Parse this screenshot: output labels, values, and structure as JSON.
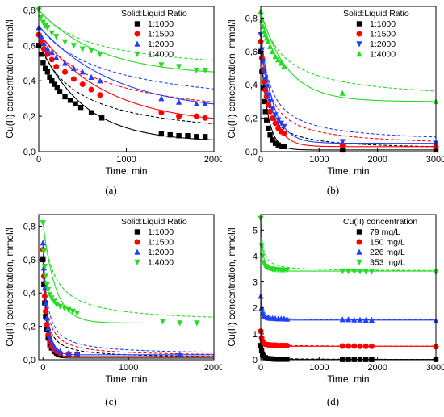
{
  "chart_data": [
    {
      "panel": "a",
      "caption": "(a)",
      "type": "scatter",
      "xlabel": "Time, min",
      "ylabel": "Cu(II) concentration, mmol/l",
      "xlim": [
        0,
        2000
      ],
      "ylim": [
        0,
        0.82
      ],
      "xticks": [
        0,
        1000,
        2000
      ],
      "xtick_labels": [
        "0",
        "1000",
        "2000"
      ],
      "yticks": [
        0,
        0.2,
        0.4,
        0.6,
        0.8
      ],
      "ytick_labels": [
        "0,0",
        "0,2",
        "0,4",
        "0,6",
        "0,8"
      ],
      "legend_title": "Solid:Liquid Ratio",
      "legend_position": "top-right",
      "series": [
        {
          "name": "1:1000",
          "color": "#000000",
          "marker": "square",
          "x": [
            0,
            25,
            50,
            75,
            100,
            125,
            150,
            180,
            210,
            240,
            300,
            360,
            420,
            480,
            600,
            720,
            1400,
            1500,
            1600,
            1700,
            1800,
            1900
          ],
          "y": [
            0.6,
            0.55,
            0.5,
            0.47,
            0.45,
            0.42,
            0.4,
            0.38,
            0.36,
            0.34,
            0.31,
            0.29,
            0.27,
            0.25,
            0.22,
            0.19,
            0.1,
            0.095,
            0.09,
            0.09,
            0.085,
            0.085
          ],
          "fit": {
            "c0": 0.615,
            "cinf": 0.055,
            "k": 0.00195
          }
        },
        {
          "name": "1:1500",
          "color": "#ff0000",
          "marker": "circle",
          "x": [
            0,
            30,
            60,
            100,
            150,
            200,
            300,
            400,
            500,
            600,
            700,
            1400,
            1600,
            1800,
            1900
          ],
          "y": [
            0.66,
            0.62,
            0.58,
            0.55,
            0.52,
            0.48,
            0.45,
            0.41,
            0.38,
            0.35,
            0.32,
            0.22,
            0.2,
            0.2,
            0.19
          ],
          "fit": {
            "c0": 0.675,
            "cinf": 0.15,
            "k": 0.00132
          }
        },
        {
          "name": "1:2000",
          "color": "#1f3fff",
          "marker": "triangle-up",
          "x": [
            0,
            30,
            60,
            100,
            150,
            200,
            300,
            400,
            500,
            600,
            700,
            1400,
            1600,
            1800,
            1900
          ],
          "y": [
            0.7,
            0.65,
            0.61,
            0.58,
            0.56,
            0.53,
            0.5,
            0.47,
            0.45,
            0.42,
            0.4,
            0.3,
            0.28,
            0.27,
            0.27
          ],
          "fit": {
            "c0": 0.71,
            "cinf": 0.22,
            "k": 0.00115
          }
        },
        {
          "name": "1:4000",
          "color": "#22dd22",
          "marker": "triangle-down",
          "x": [
            0,
            25,
            50,
            75,
            100,
            150,
            200,
            300,
            400,
            500,
            600,
            700,
            1400,
            1600,
            1800,
            1900
          ],
          "y": [
            0.8,
            0.76,
            0.73,
            0.71,
            0.7,
            0.67,
            0.65,
            0.62,
            0.6,
            0.58,
            0.57,
            0.55,
            0.49,
            0.48,
            0.46,
            0.46
          ],
          "fit": {
            "c0": 0.8,
            "cinf": 0.43,
            "k": 0.00145
          }
        }
      ]
    },
    {
      "panel": "b",
      "caption": "(b)",
      "type": "scatter",
      "xlabel": "Time, min",
      "ylabel": "Cu(II) concentration, mmol/l",
      "xlim": [
        0,
        3000
      ],
      "ylim": [
        0,
        0.87
      ],
      "xticks": [
        0,
        1000,
        2000,
        3000
      ],
      "xtick_labels": [
        "0",
        "1000",
        "2000",
        "3000"
      ],
      "yticks": [
        0,
        0.2,
        0.4,
        0.6,
        0.8
      ],
      "ytick_labels": [
        "0,0",
        "0,2",
        "0,4",
        "0,6",
        "0,8"
      ],
      "legend_title": "Solid:Liquid Ratio",
      "legend_position": "top-right",
      "series": [
        {
          "name": "1:1000",
          "color": "#000000",
          "marker": "square",
          "x": [
            0,
            20,
            40,
            60,
            80,
            100,
            130,
            160,
            200,
            250,
            300,
            350,
            400,
            1400,
            3000
          ],
          "y": [
            0.6,
            0.48,
            0.38,
            0.3,
            0.24,
            0.19,
            0.14,
            0.1,
            0.07,
            0.05,
            0.04,
            0.03,
            0.03,
            0.01,
            0.01
          ],
          "fit": {
            "c0": 0.62,
            "cinf": 0.01,
            "k": 0.0085
          }
        },
        {
          "name": "1:1500",
          "color": "#ff0000",
          "marker": "circle",
          "x": [
            0,
            20,
            40,
            60,
            80,
            100,
            130,
            160,
            200,
            250,
            300,
            350,
            400,
            1400,
            3000
          ],
          "y": [
            0.66,
            0.56,
            0.49,
            0.42,
            0.37,
            0.33,
            0.28,
            0.24,
            0.2,
            0.17,
            0.14,
            0.12,
            0.11,
            0.04,
            0.03
          ],
          "fit": {
            "c0": 0.68,
            "cinf": 0.03,
            "k": 0.0055
          }
        },
        {
          "name": "1:2000",
          "color": "#1f3fff",
          "marker": "triangle-down",
          "x": [
            0,
            20,
            40,
            60,
            80,
            100,
            130,
            160,
            200,
            250,
            300,
            350,
            400,
            1400,
            3000
          ],
          "y": [
            0.7,
            0.61,
            0.54,
            0.48,
            0.43,
            0.39,
            0.34,
            0.3,
            0.26,
            0.22,
            0.19,
            0.17,
            0.15,
            0.06,
            0.05
          ],
          "fit": {
            "c0": 0.71,
            "cinf": 0.05,
            "k": 0.0048
          }
        },
        {
          "name": "1:4000",
          "color": "#22dd22",
          "marker": "triangle-up",
          "x": [
            0,
            20,
            40,
            60,
            80,
            100,
            130,
            160,
            200,
            250,
            300,
            350,
            400,
            1400,
            3000
          ],
          "y": [
            0.84,
            0.79,
            0.75,
            0.72,
            0.7,
            0.68,
            0.66,
            0.63,
            0.6,
            0.57,
            0.55,
            0.53,
            0.51,
            0.35,
            0.3
          ],
          "fit": {
            "c0": 0.84,
            "cinf": 0.3,
            "k": 0.0022
          }
        }
      ]
    },
    {
      "panel": "c",
      "caption": "(c)",
      "type": "scatter",
      "xlabel": "Time, min",
      "ylabel": "Cu(II) concentration, mmol/l",
      "xlim": [
        -50,
        2000
      ],
      "ylim": [
        0,
        0.87
      ],
      "xticks": [
        0,
        1000,
        2000
      ],
      "xtick_labels": [
        "0",
        "1000",
        "2000"
      ],
      "yticks": [
        0,
        0.2,
        0.4,
        0.6,
        0.8
      ],
      "ytick_labels": [
        "0,0",
        "0,2",
        "0,4",
        "0,6",
        "0,8"
      ],
      "legend_title": "Solid:Liquid Ratio",
      "legend_position": "top-right",
      "series": [
        {
          "name": "1:1000",
          "color": "#000000",
          "marker": "square",
          "x": [
            0,
            10,
            20,
            30,
            45,
            60,
            80,
            100,
            130,
            160,
            200,
            300,
            400
          ],
          "y": [
            0.6,
            0.45,
            0.34,
            0.26,
            0.18,
            0.13,
            0.09,
            0.07,
            0.05,
            0.04,
            0.03,
            0.03,
            0.03
          ],
          "fit": {
            "c0": 0.6,
            "cinf": 0.01,
            "k": 0.025
          }
        },
        {
          "name": "1:1500",
          "color": "#ff0000",
          "marker": "circle",
          "x": [
            0,
            10,
            20,
            30,
            45,
            60,
            80,
            100,
            130,
            160,
            200,
            300,
            400
          ],
          "y": [
            0.66,
            0.5,
            0.38,
            0.29,
            0.21,
            0.15,
            0.11,
            0.08,
            0.06,
            0.05,
            0.04,
            0.035,
            0.03
          ],
          "fit": {
            "c0": 0.66,
            "cinf": 0.02,
            "k": 0.022
          }
        },
        {
          "name": "1:2000",
          "color": "#1f3fff",
          "marker": "triangle-up",
          "x": [
            0,
            10,
            20,
            30,
            45,
            60,
            80,
            100,
            130,
            160,
            200,
            300,
            400,
            1600
          ],
          "y": [
            0.7,
            0.55,
            0.43,
            0.34,
            0.25,
            0.19,
            0.14,
            0.11,
            0.08,
            0.06,
            0.05,
            0.04,
            0.04,
            0.03
          ],
          "fit": {
            "c0": 0.7,
            "cinf": 0.03,
            "k": 0.019
          }
        },
        {
          "name": "1:4000",
          "color": "#22dd22",
          "marker": "triangle-down",
          "x": [
            0,
            10,
            20,
            30,
            45,
            60,
            80,
            100,
            130,
            160,
            200,
            250,
            300,
            350,
            400,
            1400,
            1600,
            1800
          ],
          "y": [
            0.82,
            0.65,
            0.56,
            0.5,
            0.45,
            0.42,
            0.39,
            0.37,
            0.35,
            0.33,
            0.32,
            0.31,
            0.3,
            0.29,
            0.28,
            0.23,
            0.22,
            0.22
          ],
          "fit": {
            "c0": 0.82,
            "cinf": 0.22,
            "k": 0.007
          }
        }
      ]
    },
    {
      "panel": "d",
      "caption": "(d)",
      "type": "scatter",
      "xlabel": "Time, min",
      "ylabel": "Cu(II) concentration, mmol/l",
      "xlim": [
        0,
        3000
      ],
      "ylim": [
        0,
        5.6
      ],
      "xticks": [
        0,
        1000,
        2000,
        3000
      ],
      "xtick_labels": [
        "0",
        "1000",
        "2000",
        "3000"
      ],
      "yticks": [
        0,
        1,
        2,
        3,
        4,
        5
      ],
      "ytick_labels": [
        "0",
        "1",
        "2",
        "3",
        "4",
        "5"
      ],
      "legend_title": "Cu(II) concentration",
      "legend_position": "top-right",
      "series": [
        {
          "name": "79 mg/L",
          "color": "#000000",
          "marker": "square",
          "x": [
            0,
            15,
            30,
            50,
            80,
            120,
            160,
            200,
            250,
            300,
            350,
            400,
            450,
            1400,
            1500,
            1600,
            1700,
            1800,
            1900,
            3000
          ],
          "y": [
            0.55,
            0.35,
            0.22,
            0.14,
            0.08,
            0.05,
            0.04,
            0.03,
            0.02,
            0.02,
            0.02,
            0.02,
            0.02,
            0.01,
            0.01,
            0.01,
            0.01,
            0.01,
            0.01,
            0.01
          ],
          "fit": {
            "c0": 0.55,
            "cinf": 0.01,
            "k": 0.03
          }
        },
        {
          "name": "150 mg/L",
          "color": "#ff0000",
          "marker": "circle",
          "x": [
            0,
            15,
            30,
            50,
            80,
            120,
            160,
            200,
            250,
            300,
            350,
            400,
            450,
            1400,
            1500,
            1600,
            1700,
            1800,
            1900,
            3000
          ],
          "y": [
            1.1,
            0.85,
            0.72,
            0.64,
            0.6,
            0.58,
            0.57,
            0.56,
            0.56,
            0.55,
            0.55,
            0.55,
            0.55,
            0.53,
            0.53,
            0.53,
            0.52,
            0.52,
            0.52,
            0.5
          ],
          "fit": {
            "c0": 1.1,
            "cinf": 0.52,
            "k": 0.03
          }
        },
        {
          "name": "226 mg/L",
          "color": "#1f3fff",
          "marker": "triangle-up",
          "x": [
            0,
            15,
            30,
            50,
            80,
            120,
            160,
            200,
            250,
            300,
            350,
            400,
            450,
            1400,
            1500,
            1600,
            1700,
            1800,
            1900,
            3000
          ],
          "y": [
            2.45,
            2.0,
            1.8,
            1.7,
            1.65,
            1.62,
            1.6,
            1.6,
            1.59,
            1.58,
            1.58,
            1.58,
            1.57,
            1.55,
            1.55,
            1.54,
            1.54,
            1.53,
            1.53,
            1.5
          ],
          "fit": {
            "c0": 2.45,
            "cinf": 1.53,
            "k": 0.03
          }
        },
        {
          "name": "353 mg/L",
          "color": "#22dd22",
          "marker": "triangle-down",
          "x": [
            0,
            15,
            30,
            50,
            80,
            120,
            160,
            200,
            250,
            300,
            350,
            400,
            450,
            1400,
            1500,
            1600,
            1700,
            1800,
            1900,
            3000
          ],
          "y": [
            5.45,
            4.4,
            4.0,
            3.75,
            3.6,
            3.55,
            3.5,
            3.5,
            3.48,
            3.47,
            3.46,
            3.46,
            3.45,
            3.42,
            3.42,
            3.41,
            3.41,
            3.4,
            3.4,
            3.38
          ],
          "fit": {
            "c0": 5.45,
            "cinf": 3.42,
            "k": 0.025
          }
        }
      ]
    }
  ]
}
